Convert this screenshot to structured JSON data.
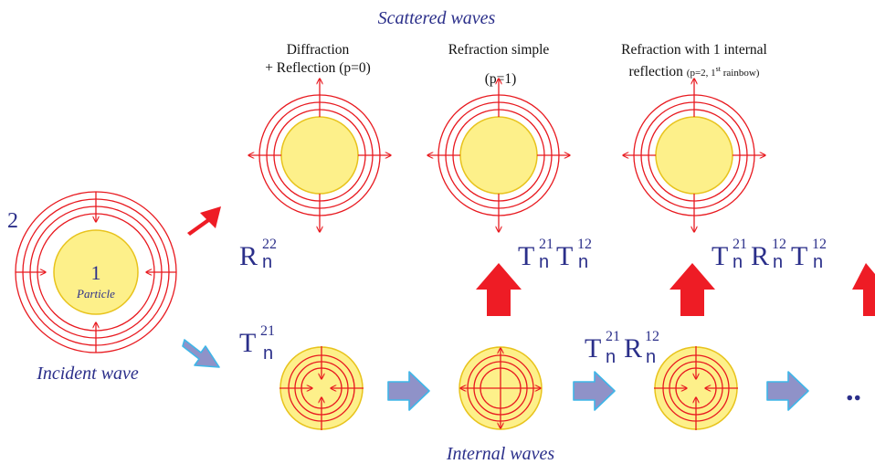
{
  "colors": {
    "ring": "#e8191f",
    "particle_fill": "#fdf08a",
    "particle_stroke": "#e8c31c",
    "text_navy": "#2b2f8a",
    "arrow_red": "#ee1c25",
    "arrow_blue": "#8f92c8",
    "arrow_blue_outline": "#3fb6e8"
  },
  "header": {
    "scattered_title": "Scattered waves"
  },
  "incident": {
    "medium_label": "2",
    "particle_number": "1",
    "particle_label": "Particle",
    "caption": "Incident wave"
  },
  "scattered": [
    {
      "line1": "Diffraction",
      "line2": "+ Reflection (p=0)"
    },
    {
      "line1": "Refraction simple",
      "line2": "(p=1)"
    },
    {
      "line1": "Refraction with 1 internal",
      "line2_main": "reflection ",
      "line2_small_a": "(p=2, 1",
      "line2_sup": "st",
      "line2_small_b": " rainbow)"
    }
  ],
  "coefficients": {
    "R": "R",
    "T": "T",
    "n": "n",
    "sup_22": "22",
    "sup_21": "21",
    "sup_12": "12"
  },
  "internal": {
    "caption": "Internal waves",
    "ellipsis": ".."
  }
}
